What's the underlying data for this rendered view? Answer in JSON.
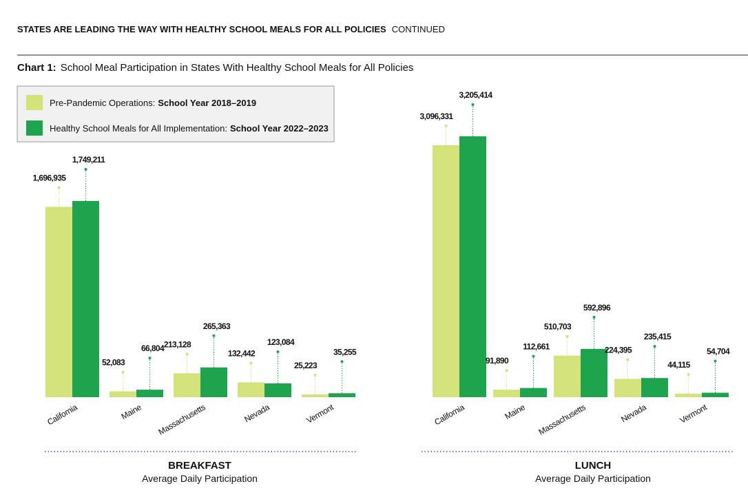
{
  "header": {
    "title": "STATES ARE LEADING THE WAY WITH HEALTHY SCHOOL MEALS FOR ALL POLICIES",
    "subtitle": "CONTINUED"
  },
  "chart_heading": {
    "label": "Chart 1:",
    "title": "School Meal Participation in States With Healthy School Meals for All Policies"
  },
  "legend": [
    {
      "name": "Pre-Pandemic Operations:",
      "period": "School Year 2018–2019",
      "color": "#d4e27a"
    },
    {
      "name": "Healthy School Meals for All Implementation:",
      "period": "School Year 2022–2023",
      "color": "#1ea34f"
    }
  ],
  "chart_data": [
    {
      "type": "bar",
      "title": "BREAKFAST",
      "subtitle": "Average Daily Participation",
      "categories": [
        "California",
        "Maine",
        "Massachusetts",
        "Nevada",
        "Vermont"
      ],
      "series": [
        {
          "color": "#d4e27a",
          "values": [
            1696935,
            52083,
            213128,
            132442,
            25223
          ],
          "value_labels": [
            "1,696,935",
            "52,083",
            "213,128",
            "132,442",
            "25,223"
          ]
        },
        {
          "color": "#1ea34f",
          "values": [
            1749211,
            66804,
            265363,
            123084,
            35255
          ],
          "value_labels": [
            "1,749,211",
            "66,804",
            "265,363",
            "123,084",
            "35,255"
          ]
        }
      ]
    },
    {
      "type": "bar",
      "title": "LUNCH",
      "subtitle": "Average Daily Participation",
      "categories": [
        "California",
        "Maine",
        "Massachusetts",
        "Nevada",
        "Vermont"
      ],
      "series": [
        {
          "color": "#d4e27a",
          "values": [
            3096331,
            91890,
            510703,
            224395,
            44115
          ],
          "value_labels": [
            "3,096,331",
            "91,890",
            "510,703",
            "224,395",
            "44,115"
          ]
        },
        {
          "color": "#1ea34f",
          "values": [
            3205414,
            112661,
            592896,
            235415,
            54704
          ],
          "value_labels": [
            "3,205,414",
            "112,661",
            "592,896",
            "235,415",
            "54,704"
          ]
        }
      ]
    }
  ]
}
